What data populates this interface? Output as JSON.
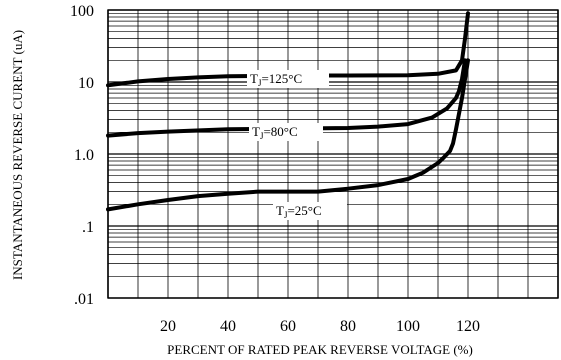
{
  "chart_data": {
    "type": "line",
    "title": "",
    "xlabel": "PERCENT OF RATED PEAK REVERSE VOLTAGE (%)",
    "ylabel": "INSTANTANEOUS REVERSE CURENT (uA)",
    "xlim": [
      0,
      150
    ],
    "ylim": [
      0.01,
      100
    ],
    "yscale": "log",
    "grid": true,
    "x_ticks": [
      20,
      40,
      60,
      80,
      100,
      120
    ],
    "x_tick_labels": [
      "20",
      "40",
      "60",
      "80",
      "100",
      "120"
    ],
    "y_ticks": [
      0.01,
      0.1,
      1,
      10,
      100
    ],
    "y_tick_labels": [
      ".01",
      ".1",
      "1.0",
      "10",
      "100"
    ],
    "series": [
      {
        "name": "TJ=125°C",
        "label_parts": {
          "base": "T",
          "sub": "J",
          "rest": "=125°C"
        },
        "x": [
          0,
          10,
          20,
          30,
          40,
          60,
          80,
          100,
          110,
          116,
          118,
          119,
          120
        ],
        "y": [
          9.0,
          10.2,
          11.0,
          11.6,
          12.0,
          12.3,
          12.3,
          12.4,
          13.0,
          14.5,
          20,
          40,
          90
        ]
      },
      {
        "name": "TJ=80°C",
        "label_parts": {
          "base": "T",
          "sub": "J",
          "rest": "=80°C"
        },
        "x": [
          0,
          10,
          20,
          40,
          60,
          80,
          90,
          100,
          108,
          113,
          116,
          117,
          118,
          119
        ],
        "y": [
          1.8,
          1.95,
          2.05,
          2.2,
          2.25,
          2.3,
          2.4,
          2.6,
          3.2,
          4.3,
          6.0,
          7.5,
          11,
          20
        ]
      },
      {
        "name": "TJ=25°C",
        "label_parts": {
          "base": "T",
          "sub": "J",
          "rest": "=25°C"
        },
        "x": [
          0,
          10,
          20,
          30,
          40,
          50,
          60,
          70,
          80,
          90,
          100,
          105,
          110,
          112,
          114,
          115,
          116,
          118,
          120
        ],
        "y": [
          0.17,
          0.2,
          0.23,
          0.26,
          0.28,
          0.3,
          0.3,
          0.3,
          0.33,
          0.37,
          0.45,
          0.55,
          0.75,
          0.9,
          1.1,
          1.4,
          2.2,
          6,
          20
        ]
      }
    ]
  }
}
